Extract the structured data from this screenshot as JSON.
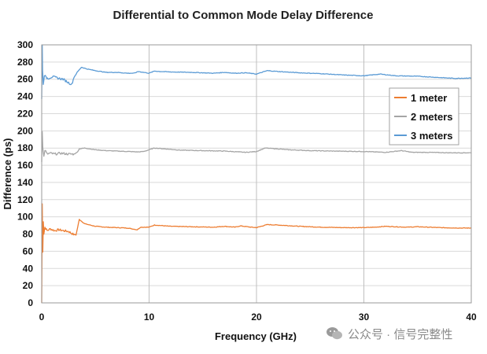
{
  "chart_data": {
    "type": "line",
    "title": "Differential to Common Mode Delay Difference",
    "xlabel": "Frequency (GHz)",
    "ylabel": "Difference (ps)",
    "xlim": [
      0,
      40
    ],
    "ylim": [
      0,
      300
    ],
    "xticks": [
      0,
      10,
      20,
      30,
      40
    ],
    "yticks": [
      0,
      20,
      40,
      60,
      80,
      100,
      120,
      140,
      160,
      180,
      200,
      220,
      240,
      260,
      280,
      300
    ],
    "grid": "major vertical and horizontal",
    "legend_position": "right",
    "series": [
      {
        "name": "1 meter",
        "color": "#ED7D31",
        "points": [
          [
            0,
            0
          ],
          [
            0.05,
            115
          ],
          [
            0.1,
            60
          ],
          [
            0.15,
            95
          ],
          [
            0.2,
            80
          ],
          [
            0.3,
            88
          ],
          [
            0.5,
            84
          ],
          [
            0.8,
            86
          ],
          [
            1.2,
            84
          ],
          [
            1.6,
            85
          ],
          [
            2.0,
            84
          ],
          [
            2.5,
            83
          ],
          [
            2.9,
            80
          ],
          [
            3.2,
            79
          ],
          [
            3.5,
            97
          ],
          [
            4.0,
            92
          ],
          [
            5.0,
            89
          ],
          [
            6.0,
            88
          ],
          [
            7.0,
            87.5
          ],
          [
            8.0,
            87
          ],
          [
            8.9,
            85
          ],
          [
            9.2,
            88
          ],
          [
            10.0,
            88
          ],
          [
            10.5,
            90.5
          ],
          [
            11.0,
            90
          ],
          [
            12.0,
            89
          ],
          [
            14.0,
            88.5
          ],
          [
            16.0,
            88
          ],
          [
            17.0,
            89
          ],
          [
            18.0,
            88
          ],
          [
            18.5,
            89.5
          ],
          [
            19.5,
            88
          ],
          [
            20.0,
            87.5
          ],
          [
            21.0,
            91
          ],
          [
            22.0,
            90.5
          ],
          [
            24.0,
            89
          ],
          [
            26.0,
            88
          ],
          [
            28.0,
            87.5
          ],
          [
            30.0,
            87.5
          ],
          [
            31.0,
            88
          ],
          [
            32.0,
            89
          ],
          [
            34.0,
            88
          ],
          [
            35.0,
            88.5
          ],
          [
            37.0,
            87.5
          ],
          [
            39.0,
            87
          ],
          [
            40.0,
            87
          ]
        ]
      },
      {
        "name": "2 meters",
        "color": "#A5A5A5",
        "points": [
          [
            0,
            165
          ],
          [
            0.05,
            200
          ],
          [
            0.1,
            180
          ],
          [
            0.2,
            170
          ],
          [
            0.3,
            178
          ],
          [
            0.5,
            173
          ],
          [
            0.8,
            174
          ],
          [
            1.2,
            173
          ],
          [
            1.8,
            174
          ],
          [
            2.5,
            173
          ],
          [
            3.0,
            173
          ],
          [
            3.3,
            175
          ],
          [
            3.5,
            179
          ],
          [
            4.0,
            180
          ],
          [
            5.0,
            178
          ],
          [
            6.0,
            177
          ],
          [
            7.0,
            176.5
          ],
          [
            8.0,
            176
          ],
          [
            9.0,
            175.5
          ],
          [
            9.5,
            176
          ],
          [
            10.0,
            178
          ],
          [
            10.5,
            180
          ],
          [
            11.5,
            179
          ],
          [
            13.0,
            177.5
          ],
          [
            15.0,
            177
          ],
          [
            17.0,
            176.5
          ],
          [
            19.0,
            175
          ],
          [
            20.0,
            176
          ],
          [
            20.8,
            180
          ],
          [
            22.0,
            179
          ],
          [
            23.0,
            178
          ],
          [
            25.0,
            177
          ],
          [
            27.0,
            176.5
          ],
          [
            30.0,
            176
          ],
          [
            32.0,
            175
          ],
          [
            33.5,
            177
          ],
          [
            34.5,
            175
          ],
          [
            36.0,
            175
          ],
          [
            38.0,
            174.5
          ],
          [
            40.0,
            174.5
          ]
        ]
      },
      {
        "name": "3 meters",
        "color": "#5B9BD5",
        "points": [
          [
            0,
            238
          ],
          [
            0.05,
            300
          ],
          [
            0.08,
            270
          ],
          [
            0.15,
            255
          ],
          [
            0.25,
            265
          ],
          [
            0.4,
            262
          ],
          [
            0.6,
            261
          ],
          [
            1.0,
            263
          ],
          [
            1.3,
            262
          ],
          [
            1.6,
            261
          ],
          [
            2.0,
            260
          ],
          [
            2.5,
            256
          ],
          [
            2.8,
            254
          ],
          [
            3.0,
            262
          ],
          [
            3.3,
            268
          ],
          [
            3.7,
            274
          ],
          [
            4.2,
            272
          ],
          [
            5.0,
            270
          ],
          [
            6.0,
            268
          ],
          [
            7.0,
            268
          ],
          [
            8.0,
            267
          ],
          [
            8.6,
            267
          ],
          [
            9.0,
            269
          ],
          [
            10.0,
            267
          ],
          [
            10.5,
            269.5
          ],
          [
            11.0,
            269
          ],
          [
            12.0,
            268.5
          ],
          [
            14.0,
            268
          ],
          [
            16.0,
            267
          ],
          [
            17.0,
            268
          ],
          [
            18.0,
            267
          ],
          [
            19.0,
            267.5
          ],
          [
            20.0,
            266
          ],
          [
            21.0,
            270
          ],
          [
            22.0,
            269
          ],
          [
            24.0,
            267.5
          ],
          [
            26.0,
            266.5
          ],
          [
            28.0,
            265
          ],
          [
            30.0,
            264
          ],
          [
            31.5,
            266
          ],
          [
            33.0,
            264
          ],
          [
            35.0,
            263.5
          ],
          [
            37.0,
            262
          ],
          [
            38.5,
            261
          ],
          [
            40.0,
            261.5
          ]
        ]
      }
    ]
  },
  "watermark": {
    "text": "公众号 · 信号完整性",
    "icon": "wechat-icon"
  }
}
